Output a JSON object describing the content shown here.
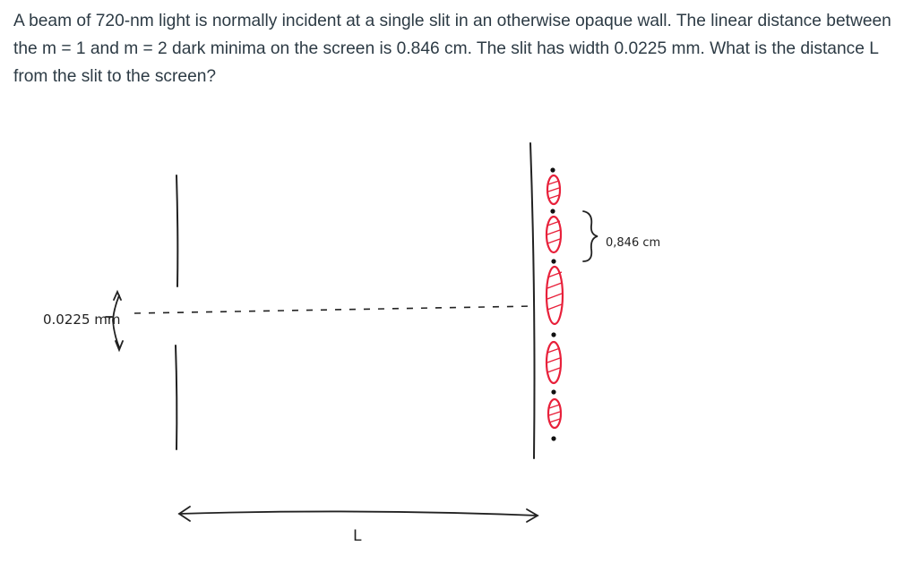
{
  "problem": {
    "text": "A beam of 720-nm light is normally incident at a single slit in an otherwise opaque wall.  The linear distance between the m = 1 and m = 2 dark minima on the screen is 0.846 cm.  The slit has width 0.0225 mm.  What is the distance L from the slit to the screen?"
  },
  "figure": {
    "slit_width_label": "0.0225 mm",
    "minima_spacing_label": "0,846 cm",
    "distance_label": "L",
    "colors": {
      "ink": "#222222",
      "fringe": "#e8203a"
    }
  }
}
